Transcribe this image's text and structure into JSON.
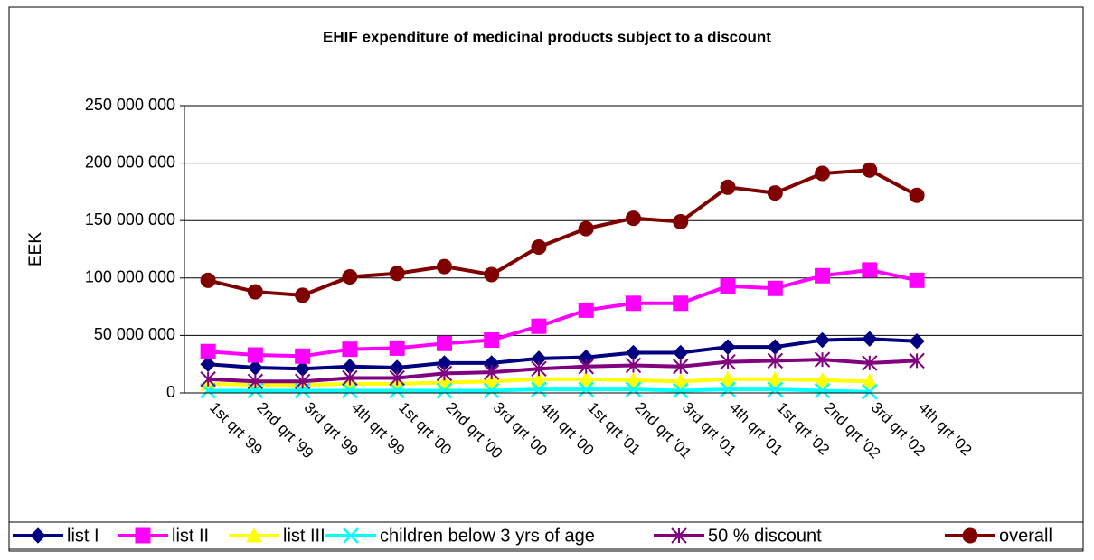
{
  "chart_data": {
    "type": "line",
    "title": "EHIF expenditure of medicinal products subject to a discount",
    "ylabel": "EEK",
    "categories": [
      "1st qrt '99",
      "2nd qrt '99",
      "3rd qrt '99",
      "4th qrt '99",
      "1st qrt '00",
      "2nd qrt '00",
      "3rd qrt '00",
      "4th qrt '00",
      "1st qrt '01",
      "2nd qrt '01",
      "3rd qrt '01",
      "4th qrt '01",
      "1st qrt '02",
      "2nd qrt '02",
      "3rd qrt '02",
      "4th qrt '02",
      null,
      null,
      null
    ],
    "series": [
      {
        "name": "list I",
        "color": "#000080",
        "marker": "diamond",
        "values": [
          25000000,
          22000000,
          21000000,
          23000000,
          22000000,
          26000000,
          26000000,
          30000000,
          31000000,
          35000000,
          35000000,
          40000000,
          40000000,
          46000000,
          47000000,
          45000000,
          null,
          null,
          null
        ]
      },
      {
        "name": "list II",
        "color": "#ff00ff",
        "marker": "square",
        "values": [
          36000000,
          33000000,
          32000000,
          38000000,
          39000000,
          43000000,
          46000000,
          58000000,
          72000000,
          78000000,
          78000000,
          93000000,
          91000000,
          102000000,
          107000000,
          98000000,
          null,
          null,
          null
        ]
      },
      {
        "name": "list III",
        "color": "#ffff00",
        "marker": "triangle",
        "values": [
          8000000,
          7000000,
          7000000,
          8000000,
          8000000,
          9000000,
          10000000,
          12000000,
          12000000,
          11000000,
          10000000,
          12000000,
          12000000,
          11000000,
          10000000,
          null,
          null,
          null,
          null
        ]
      },
      {
        "name": "children below 3 yrs of age",
        "color": "#00ffff",
        "marker": "x",
        "values": [
          2000000,
          2000000,
          2000000,
          2000000,
          2000000,
          2000000,
          2000000,
          3000000,
          3000000,
          3000000,
          2000000,
          3000000,
          3000000,
          2000000,
          1000000,
          null,
          null,
          null,
          null
        ]
      },
      {
        "name": "50 % discount",
        "color": "#800080",
        "marker": "star",
        "values": [
          12000000,
          10000000,
          10000000,
          13000000,
          13000000,
          17000000,
          18000000,
          21000000,
          23000000,
          24000000,
          23000000,
          27000000,
          28000000,
          29000000,
          26000000,
          28000000,
          null,
          null,
          null
        ]
      },
      {
        "name": "overall",
        "color": "#800000",
        "marker": "circle",
        "values": [
          98000000,
          88000000,
          85000000,
          101000000,
          104000000,
          110000000,
          103000000,
          127000000,
          143000000,
          152000000,
          149000000,
          179000000,
          174000000,
          191000000,
          194000000,
          172000000,
          null,
          null,
          null
        ]
      }
    ],
    "ylim": [
      0,
      250000000
    ],
    "yticks": [
      0,
      {
        "value": 50000000,
        "label": "50 000 000"
      },
      {
        "value": 100000000,
        "label": "100 000 000"
      },
      {
        "value": 150000000,
        "label": "150 000 000"
      },
      {
        "value": 200000000,
        "label": "200 000 000"
      },
      {
        "value": 250000000,
        "label": "250 000 000"
      }
    ],
    "grid": true,
    "legend": "bottom"
  }
}
